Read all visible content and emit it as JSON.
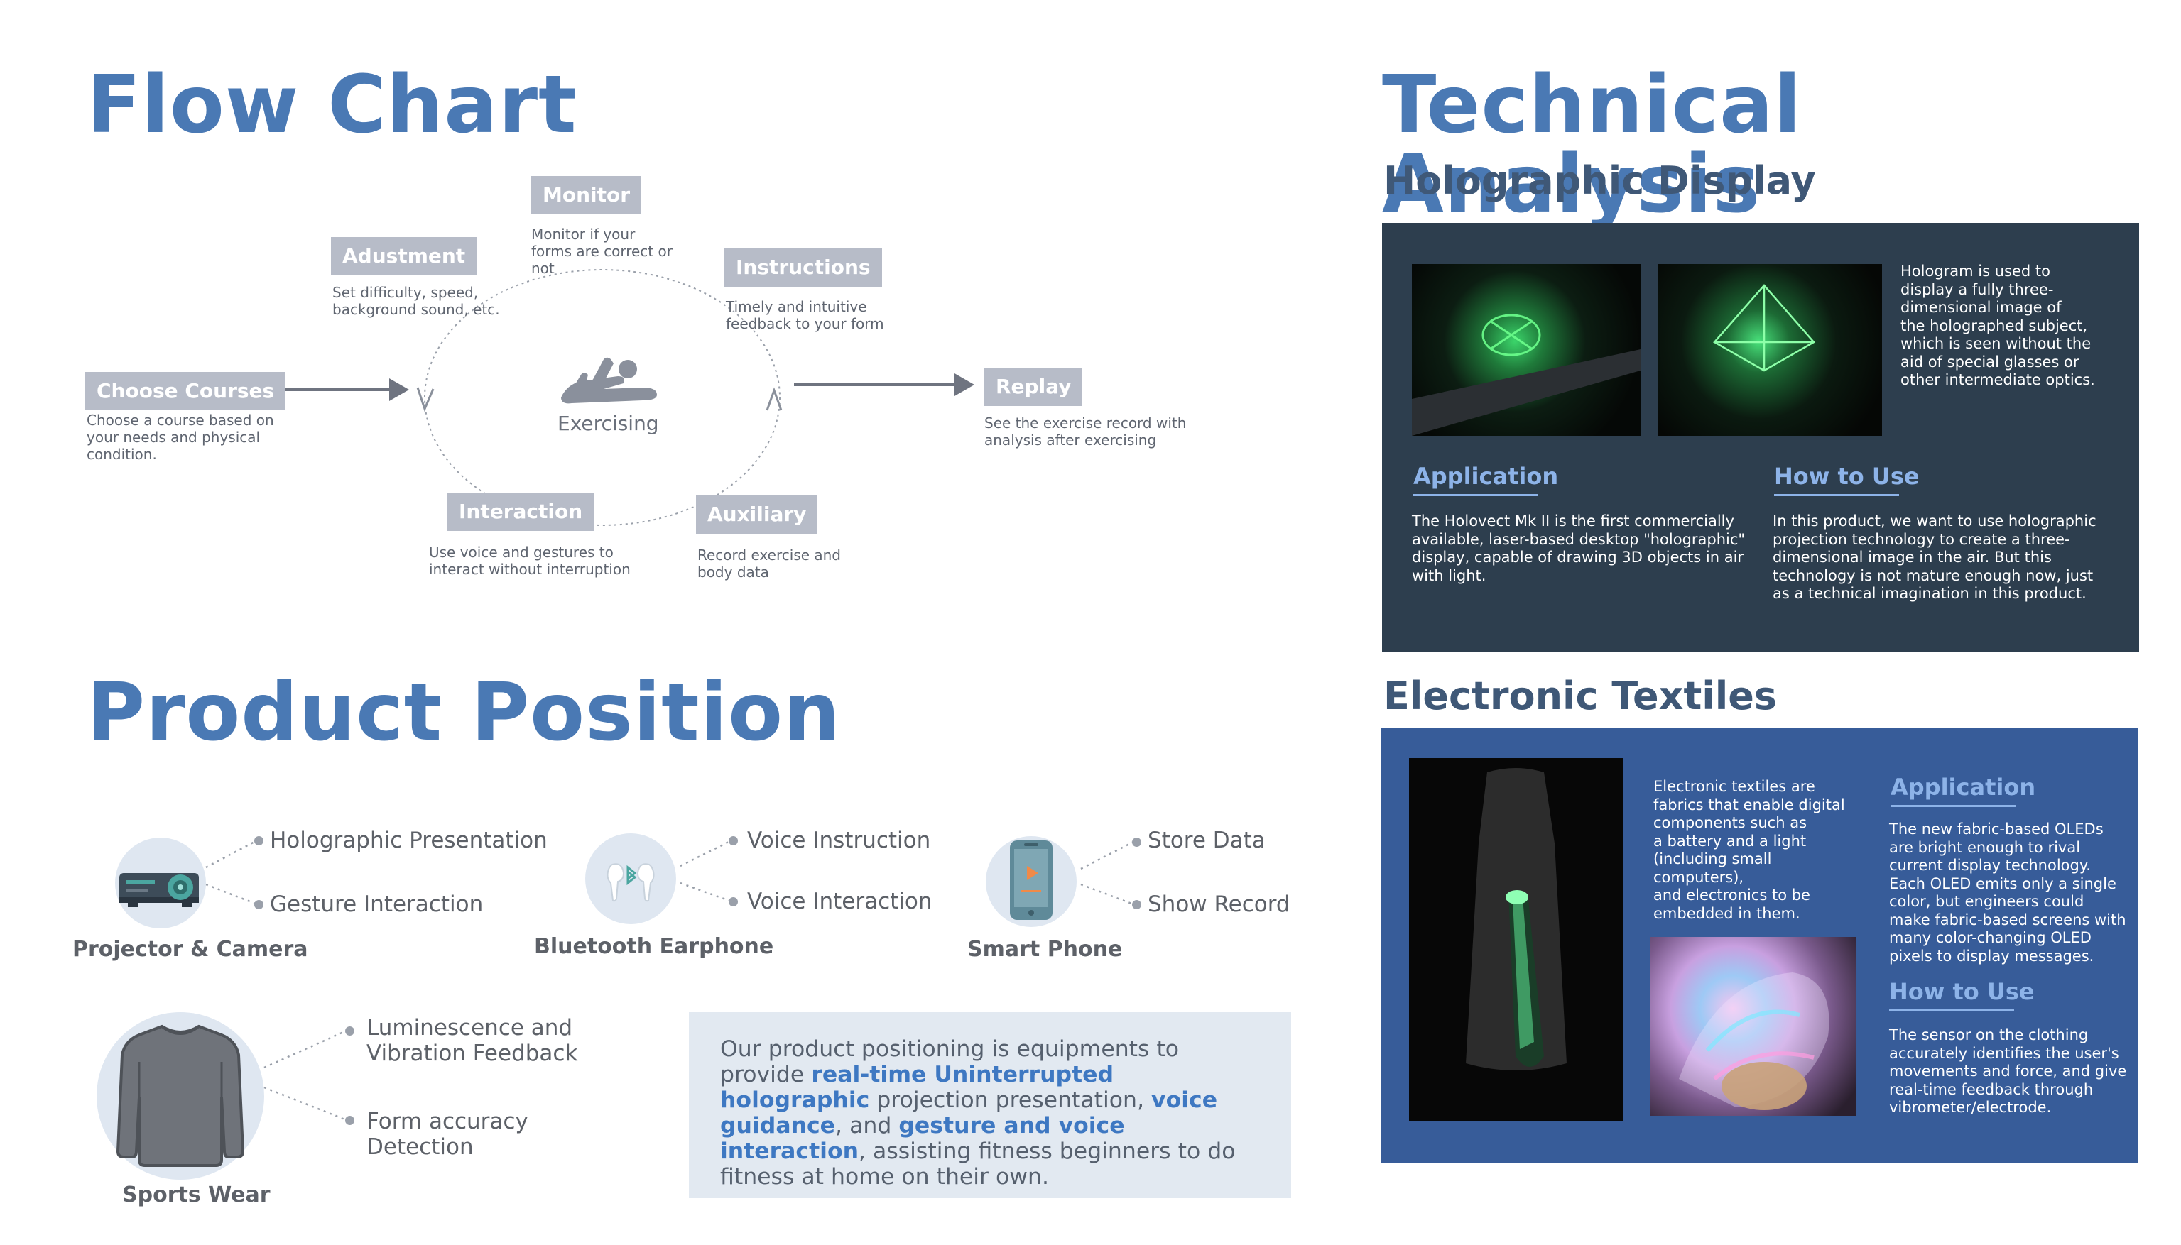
{
  "flow_chart": {
    "title": "Flow Chart",
    "center_label": "Exercising",
    "steps": {
      "choose": {
        "label": "Choose Courses",
        "desc": [
          "Choose a course based on",
          "your needs and physical",
          "condition."
        ]
      },
      "adjust": {
        "label": "Adustment",
        "desc": [
          "Set difficulty, speed,",
          "background sound, etc."
        ]
      },
      "monitor": {
        "label": "Monitor",
        "desc": [
          "Monitor if your",
          "forms are correct or",
          "not"
        ]
      },
      "instructions": {
        "label": "Instructions",
        "desc": [
          "Timely and intuitive",
          "feedback to your form"
        ]
      },
      "interaction": {
        "label": "Interaction",
        "desc": [
          "Use voice and gestures to",
          "interact without interruption"
        ]
      },
      "auxiliary": {
        "label": "Auxiliary",
        "desc": [
          "Record exercise and",
          "body data"
        ]
      },
      "replay": {
        "label": "Replay",
        "desc": [
          "See the exercise record with",
          "analysis after exercising"
        ]
      }
    }
  },
  "product_position": {
    "title": "Product Position",
    "devices": [
      {
        "label": "Projector & Camera",
        "icon": "projector-icon",
        "items": [
          "Holographic Presentation",
          "Gesture Interaction"
        ]
      },
      {
        "label": "Bluetooth Earphone",
        "icon": "earphone-icon",
        "items": [
          "Voice Instruction",
          "Voice Interaction"
        ]
      },
      {
        "label": "Smart Phone",
        "icon": "smartphone-icon",
        "items": [
          "Store Data",
          "Show Record"
        ]
      },
      {
        "label": "Sports Wear",
        "icon": "sweater-icon",
        "items": [
          "Luminescence and\nVibration Feedback",
          "Form accuracy\nDetection"
        ]
      }
    ],
    "statement": {
      "parts": [
        {
          "text": "Our product positioning is equipments to provide ",
          "hl": false
        },
        {
          "text": "real-time Uninterrupted holographic",
          "hl": true
        },
        {
          "text": " projection presentation, ",
          "hl": false
        },
        {
          "text": "voice guidance",
          "hl": true
        },
        {
          "text": ", and ",
          "hl": false
        },
        {
          "text": "gesture and voice interaction",
          "hl": true
        },
        {
          "text": ", assisting fitness beginners to do fitness at home on their own.",
          "hl": false
        }
      ]
    }
  },
  "technical_analysis": {
    "title": "Technical Analysis",
    "holographic": {
      "title": "Holographic Display",
      "intro": [
        "Hologram is used to",
        "display a fully three-",
        "dimensional image of",
        "the holographed subject,",
        "which is seen without the",
        "aid of special glasses or",
        "other intermediate optics."
      ],
      "application_title": "Application",
      "application_text": [
        "The Holovect Mk II is the first commercially",
        "available, laser-based desktop \"holographic\"",
        "display, capable of drawing 3D objects in air",
        "with light."
      ],
      "howto_title": "How to Use",
      "howto_text": [
        "In this product, we want to use holographic",
        "projection technology to create a three-",
        "dimensional image in the air. But this",
        "technology is not mature enough now, just",
        "as a technical imagination in this product."
      ]
    },
    "textiles": {
      "title": "Electronic Textiles",
      "intro": [
        "Electronic textiles are",
        "fabrics that enable digital",
        "components such as",
        "a battery and a light",
        "(including small computers),",
        "and electronics to be",
        "embedded in them."
      ],
      "application_title": "Application",
      "application_text": [
        "The new fabric-based OLEDs",
        "are bright enough to rival",
        "current display technology.",
        "Each OLED emits only a single",
        "color, but engineers could",
        "make fabric-based screens with",
        "many color-changing OLED",
        "pixels to display messages."
      ],
      "howto_title": "How to Use",
      "howto_text": [
        "The sensor on the clothing",
        "accurately identifies the user's",
        "movements and force, and give",
        "real-time feedback through",
        "vibrometer/electrode."
      ]
    }
  },
  "colors": {
    "heading_blue": "#4a79b4",
    "tag_gray": "#b7bcc8",
    "panel_dark": "#2d3e4e",
    "panel_blue": "#375c99",
    "highlight": "#3e78c2"
  }
}
